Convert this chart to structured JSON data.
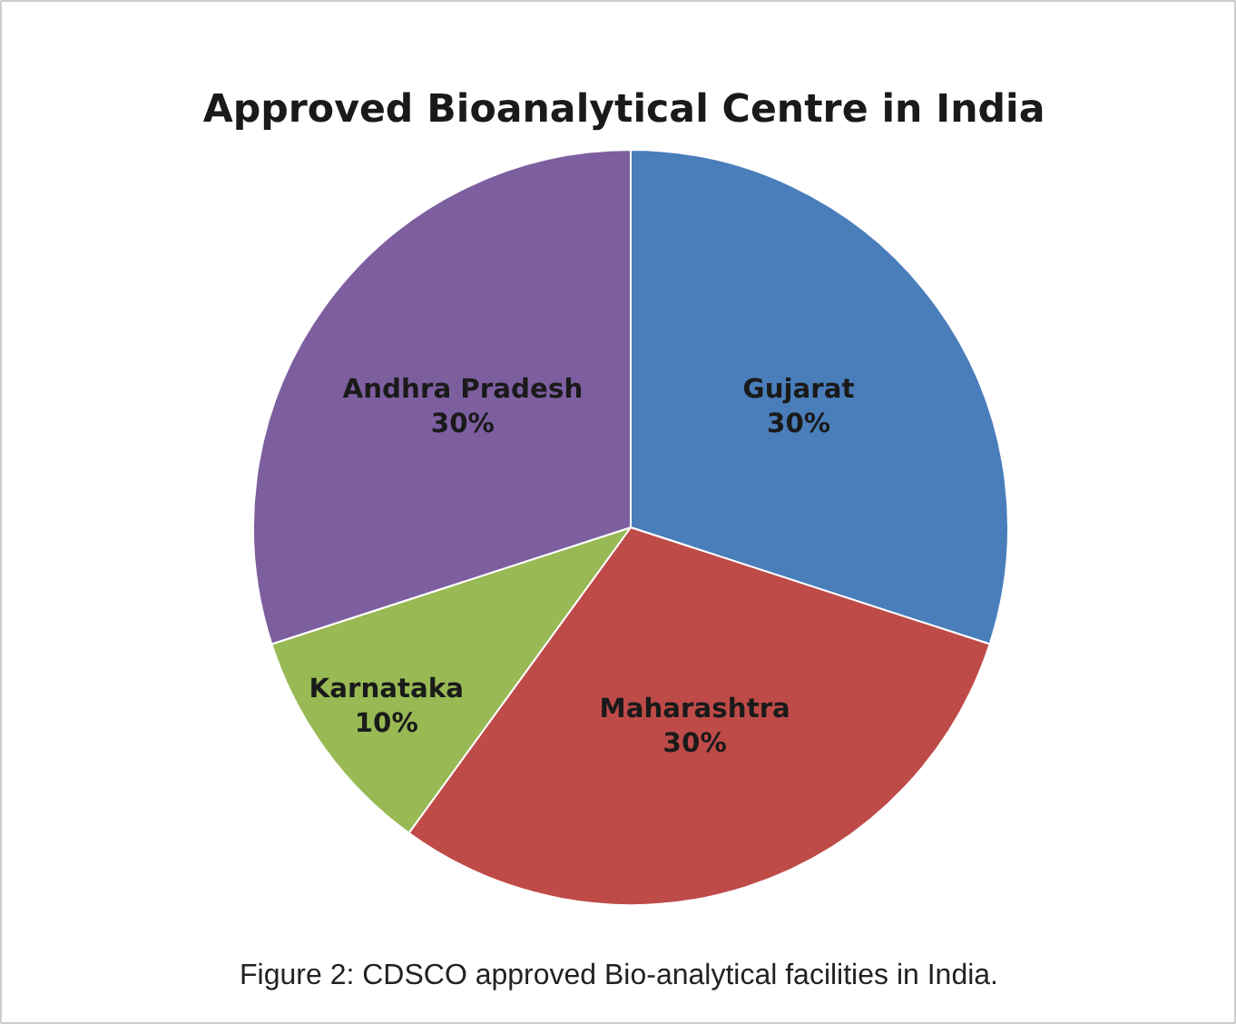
{
  "chart_data": {
    "type": "pie",
    "title": "Approved Bioanalytical  Centre in India",
    "categories": [
      "Gujarat",
      "Maharashtra",
      "Karnataka",
      "Andhra Pradesh"
    ],
    "values": [
      30,
      30,
      10,
      30
    ],
    "value_labels": [
      "30%",
      "30%",
      "10%",
      "30%"
    ],
    "colors": [
      "#4a7ebb",
      "#be4b48",
      "#98b954",
      "#7d5fa0"
    ],
    "annotations": [
      "Figure 2: CDSCO approved Bio-analytical facilities in India."
    ]
  }
}
